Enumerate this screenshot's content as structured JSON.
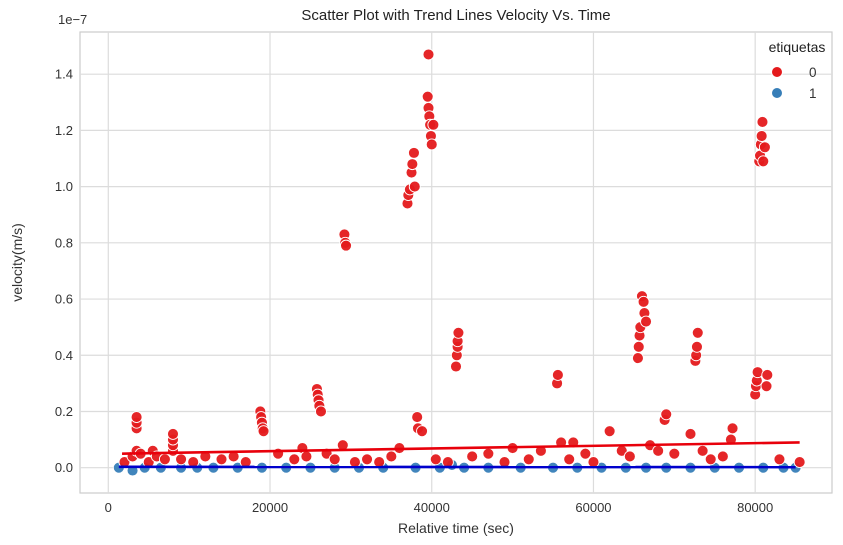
{
  "chart_data": {
    "type": "scatter",
    "title": "Scatter Plot with Trend Lines Velocity Vs. Time",
    "xlabel": "Relative time (sec)",
    "ylabel": "velocity(m/s)",
    "y_offset_label": "1e−7",
    "xlim": [
      -3500,
      89500
    ],
    "ylim": [
      -0.09,
      1.55
    ],
    "x_ticks": [
      0,
      20000,
      40000,
      60000,
      80000
    ],
    "y_ticks": [
      0.0,
      0.2,
      0.4,
      0.6,
      0.8,
      1.0,
      1.2,
      1.4
    ],
    "x_tick_labels": [
      "0",
      "20000",
      "40000",
      "60000",
      "80000"
    ],
    "y_tick_labels": [
      "0.0",
      "0.2",
      "0.4",
      "0.6",
      "0.8",
      "1.0",
      "1.2",
      "1.4"
    ],
    "grid": true,
    "legend": {
      "title": "etiquetas",
      "placement": "top-right",
      "entries": [
        {
          "label": "0",
          "color": "#e41a1c"
        },
        {
          "label": "1",
          "color": "#377eb8"
        }
      ]
    },
    "series": [
      {
        "name": "0",
        "color": "#e41a1c",
        "points": [
          [
            2000,
            0.02
          ],
          [
            3000,
            0.04
          ],
          [
            3500,
            0.06
          ],
          [
            3500,
            0.14
          ],
          [
            3500,
            0.16
          ],
          [
            3500,
            0.18
          ],
          [
            4000,
            0.05
          ],
          [
            5000,
            0.02
          ],
          [
            5500,
            0.06
          ],
          [
            6000,
            0.04
          ],
          [
            7000,
            0.03
          ],
          [
            8000,
            0.06
          ],
          [
            8000,
            0.08
          ],
          [
            8000,
            0.1
          ],
          [
            8000,
            0.12
          ],
          [
            9000,
            0.03
          ],
          [
            10500,
            0.02
          ],
          [
            12000,
            0.04
          ],
          [
            14000,
            0.03
          ],
          [
            15500,
            0.04
          ],
          [
            17000,
            0.02
          ],
          [
            18800,
            0.2
          ],
          [
            18900,
            0.18
          ],
          [
            19000,
            0.16
          ],
          [
            19100,
            0.14
          ],
          [
            19200,
            0.13
          ],
          [
            21000,
            0.05
          ],
          [
            23000,
            0.03
          ],
          [
            24000,
            0.07
          ],
          [
            24500,
            0.04
          ],
          [
            25800,
            0.28
          ],
          [
            25900,
            0.26
          ],
          [
            26000,
            0.24
          ],
          [
            26100,
            0.22
          ],
          [
            26300,
            0.2
          ],
          [
            27000,
            0.05
          ],
          [
            28000,
            0.03
          ],
          [
            29000,
            0.08
          ],
          [
            29200,
            0.83
          ],
          [
            29300,
            0.8
          ],
          [
            29400,
            0.79
          ],
          [
            30500,
            0.02
          ],
          [
            32000,
            0.03
          ],
          [
            33500,
            0.02
          ],
          [
            35000,
            0.04
          ],
          [
            36000,
            0.07
          ],
          [
            37000,
            0.94
          ],
          [
            37100,
            0.97
          ],
          [
            37300,
            0.99
          ],
          [
            37500,
            1.05
          ],
          [
            37600,
            1.08
          ],
          [
            37800,
            1.12
          ],
          [
            37900,
            1.0
          ],
          [
            38200,
            0.18
          ],
          [
            38300,
            0.14
          ],
          [
            38800,
            0.13
          ],
          [
            39500,
            1.32
          ],
          [
            39600,
            1.28
          ],
          [
            39700,
            1.25
          ],
          [
            39800,
            1.22
          ],
          [
            39900,
            1.18
          ],
          [
            40000,
            1.15
          ],
          [
            40200,
            1.22
          ],
          [
            39600,
            1.47
          ],
          [
            40500,
            0.03
          ],
          [
            42000,
            0.02
          ],
          [
            43000,
            0.36
          ],
          [
            43100,
            0.4
          ],
          [
            43200,
            0.43
          ],
          [
            43200,
            0.45
          ],
          [
            43300,
            0.48
          ],
          [
            45000,
            0.04
          ],
          [
            47000,
            0.05
          ],
          [
            49000,
            0.02
          ],
          [
            50000,
            0.07
          ],
          [
            52000,
            0.03
          ],
          [
            53500,
            0.06
          ],
          [
            55500,
            0.3
          ],
          [
            55600,
            0.33
          ],
          [
            56000,
            0.09
          ],
          [
            57000,
            0.03
          ],
          [
            57500,
            0.09
          ],
          [
            59000,
            0.05
          ],
          [
            60000,
            0.02
          ],
          [
            62000,
            0.13
          ],
          [
            63500,
            0.06
          ],
          [
            64500,
            0.04
          ],
          [
            65500,
            0.39
          ],
          [
            65600,
            0.43
          ],
          [
            65700,
            0.47
          ],
          [
            65800,
            0.5
          ],
          [
            66000,
            0.61
          ],
          [
            66200,
            0.59
          ],
          [
            66300,
            0.55
          ],
          [
            66500,
            0.52
          ],
          [
            67000,
            0.08
          ],
          [
            68000,
            0.06
          ],
          [
            68800,
            0.17
          ],
          [
            69000,
            0.19
          ],
          [
            70000,
            0.05
          ],
          [
            72000,
            0.12
          ],
          [
            72600,
            0.38
          ],
          [
            72700,
            0.4
          ],
          [
            72800,
            0.43
          ],
          [
            72900,
            0.48
          ],
          [
            73500,
            0.06
          ],
          [
            74500,
            0.03
          ],
          [
            76000,
            0.04
          ],
          [
            77000,
            0.1
          ],
          [
            77200,
            0.14
          ],
          [
            80000,
            0.26
          ],
          [
            80100,
            0.29
          ],
          [
            80200,
            0.31
          ],
          [
            80300,
            0.34
          ],
          [
            80500,
            1.09
          ],
          [
            80600,
            1.11
          ],
          [
            80700,
            1.15
          ],
          [
            80800,
            1.18
          ],
          [
            80900,
            1.23
          ],
          [
            81000,
            1.09
          ],
          [
            81200,
            1.14
          ],
          [
            81400,
            0.29
          ],
          [
            81500,
            0.33
          ],
          [
            83000,
            0.03
          ],
          [
            85500,
            0.02
          ]
        ],
        "trend": [
          [
            1700,
            0.05
          ],
          [
            85500,
            0.09
          ]
        ]
      },
      {
        "name": "1",
        "color": "#377eb8",
        "points": [
          [
            1300,
            0.0
          ],
          [
            3000,
            -0.01
          ],
          [
            4500,
            0.0
          ],
          [
            6500,
            0.0
          ],
          [
            9000,
            0.0
          ],
          [
            11000,
            0.0
          ],
          [
            13000,
            0.0
          ],
          [
            16000,
            0.0
          ],
          [
            19000,
            0.0
          ],
          [
            22000,
            0.0
          ],
          [
            25000,
            0.0
          ],
          [
            28000,
            0.0
          ],
          [
            31000,
            0.0
          ],
          [
            34000,
            0.0
          ],
          [
            38000,
            0.0
          ],
          [
            41000,
            0.0
          ],
          [
            42500,
            0.01
          ],
          [
            44000,
            0.0
          ],
          [
            47000,
            0.0
          ],
          [
            51000,
            0.0
          ],
          [
            55000,
            0.0
          ],
          [
            58000,
            0.0
          ],
          [
            61000,
            0.0
          ],
          [
            64000,
            0.0
          ],
          [
            66500,
            0.0
          ],
          [
            69000,
            0.0
          ],
          [
            72000,
            0.0
          ],
          [
            75000,
            0.0
          ],
          [
            78000,
            0.0
          ],
          [
            81000,
            0.0
          ],
          [
            83500,
            0.0
          ],
          [
            85000,
            0.0
          ]
        ],
        "trend": [
          [
            1300,
            0.003
          ],
          [
            85000,
            0.002
          ]
        ]
      }
    ]
  }
}
